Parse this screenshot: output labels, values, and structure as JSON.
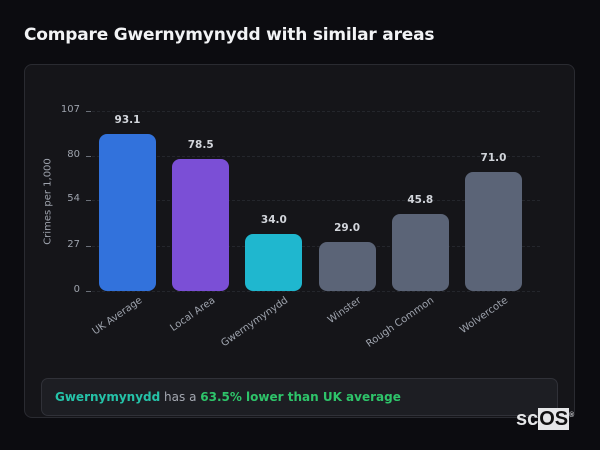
{
  "page": {
    "title": "Compare Gwernymynydd with similar areas"
  },
  "chart_data": {
    "type": "bar",
    "title": "Compare Gwernymynydd with similar areas",
    "xlabel": "",
    "ylabel": "Crimes per 1,000",
    "ylim": [
      0,
      107
    ],
    "yticks": [
      0,
      27,
      54,
      80,
      107
    ],
    "grid": true,
    "categories": [
      "UK Average",
      "Local Area",
      "Gwernymynydd",
      "Winster",
      "Rough Common",
      "Wolvercote"
    ],
    "values": [
      93.1,
      78.5,
      34.0,
      29.0,
      45.8,
      71.0
    ],
    "value_labels": [
      "93.1",
      "78.5",
      "34.0",
      "29.0",
      "45.8",
      "71.0"
    ],
    "colors": [
      "#3272dc",
      "#7b4fd6",
      "#1fb7cf",
      "#5b6477",
      "#5b6477",
      "#5b6477"
    ]
  },
  "summary": {
    "area": "Gwernymynydd",
    "middle": " has a ",
    "comparison": "63.5% lower than UK average"
  },
  "logo": {
    "prefix": "sc",
    "boxed": "OS",
    "mark": "®"
  }
}
